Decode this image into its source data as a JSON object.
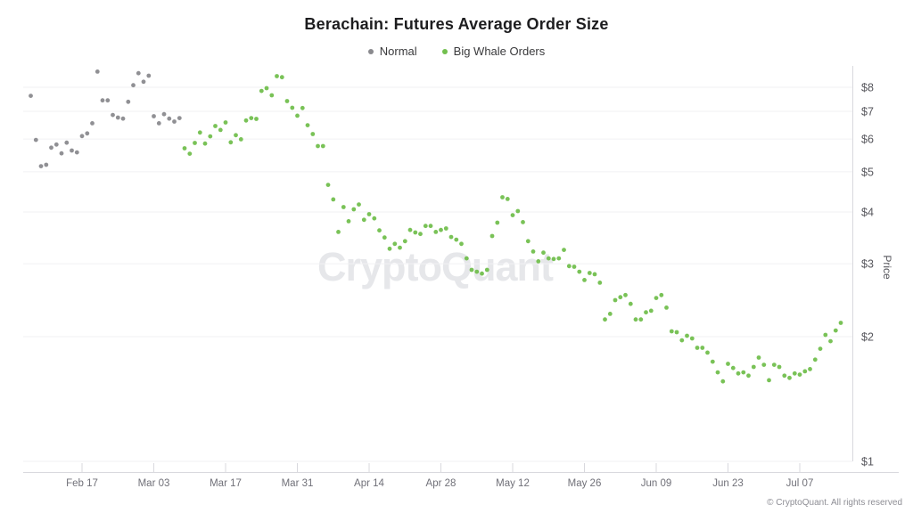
{
  "title": "Berachain: Futures Average Order Size",
  "legend": [
    {
      "label": "Normal",
      "color": "#8a8a8e"
    },
    {
      "label": "Big Whale Orders",
      "color": "#72bf4e"
    }
  ],
  "watermark": "CryptoQuant",
  "attribution": "© CryptoQuant. All rights reserved",
  "colors": {
    "normal_series": "#8a8a8e",
    "whale_series": "#72bf4e",
    "gridline": "#f1f1f3",
    "axis_line": "#d9d9de",
    "tick_label": "#707078",
    "y_label": "#56565c"
  },
  "chart_data": {
    "type": "scatter",
    "title": "Berachain: Futures Average Order Size",
    "xlabel": "",
    "ylabel": "Price",
    "y_scale": "log",
    "ylim": [
      1,
      9
    ],
    "y_ticks": [
      1,
      2,
      3,
      4,
      5,
      6,
      7,
      8
    ],
    "y_tick_prefix": "$",
    "x_ticks": [
      "Feb 17",
      "Mar 03",
      "Mar 17",
      "Mar 31",
      "Apr 14",
      "Apr 28",
      "May 12",
      "May 26",
      "Jun 09",
      "Jun 23",
      "Jul 07"
    ],
    "x_range": [
      "Feb 07",
      "Jul 15"
    ],
    "grid": "horizontal",
    "legend_position": "top",
    "series": [
      {
        "name": "Normal",
        "color": "#8a8a8e",
        "points": [
          [
            "Feb 07",
            7.63
          ],
          [
            "Feb 08",
            5.97
          ],
          [
            "Feb 09",
            5.16
          ],
          [
            "Feb 10",
            5.2
          ],
          [
            "Feb 11",
            5.72
          ],
          [
            "Feb 12",
            5.82
          ],
          [
            "Feb 13",
            5.54
          ],
          [
            "Feb 14",
            5.88
          ],
          [
            "Feb 15",
            5.63
          ],
          [
            "Feb 16",
            5.57
          ],
          [
            "Feb 17",
            6.1
          ],
          [
            "Feb 18",
            6.19
          ],
          [
            "Feb 19",
            6.55
          ],
          [
            "Feb 20",
            8.73
          ],
          [
            "Feb 21",
            7.44
          ],
          [
            "Feb 22",
            7.44
          ],
          [
            "Feb 23",
            6.86
          ],
          [
            "Feb 24",
            6.76
          ],
          [
            "Feb 25",
            6.72
          ],
          [
            "Feb 26",
            7.38
          ],
          [
            "Feb 27",
            8.09
          ],
          [
            "Feb 28",
            8.65
          ],
          [
            "Mar 01",
            8.25
          ],
          [
            "Mar 02",
            8.53
          ],
          [
            "Mar 03",
            6.81
          ],
          [
            "Mar 04",
            6.55
          ],
          [
            "Mar 05",
            6.89
          ],
          [
            "Mar 06",
            6.72
          ],
          [
            "Mar 07",
            6.61
          ],
          [
            "Mar 08",
            6.74
          ]
        ]
      },
      {
        "name": "Big Whale Orders",
        "color": "#72bf4e",
        "points": [
          [
            "Mar 09",
            5.7
          ],
          [
            "Mar 10",
            5.53
          ],
          [
            "Mar 11",
            5.87
          ],
          [
            "Mar 12",
            6.22
          ],
          [
            "Mar 13",
            5.85
          ],
          [
            "Mar 14",
            6.09
          ],
          [
            "Mar 15",
            6.45
          ],
          [
            "Mar 16",
            6.31
          ],
          [
            "Mar 17",
            6.58
          ],
          [
            "Mar 18",
            5.89
          ],
          [
            "Mar 19",
            6.13
          ],
          [
            "Mar 20",
            5.99
          ],
          [
            "Mar 21",
            6.65
          ],
          [
            "Mar 22",
            6.74
          ],
          [
            "Mar 23",
            6.71
          ],
          [
            "Mar 24",
            7.84
          ],
          [
            "Mar 25",
            7.96
          ],
          [
            "Mar 26",
            7.65
          ],
          [
            "Mar 27",
            8.51
          ],
          [
            "Mar 28",
            8.46
          ],
          [
            "Mar 29",
            7.41
          ],
          [
            "Mar 30",
            7.14
          ],
          [
            "Mar 31",
            6.83
          ],
          [
            "Apr 01",
            7.13
          ],
          [
            "Apr 02",
            6.48
          ],
          [
            "Apr 03",
            6.17
          ],
          [
            "Apr 04",
            5.77
          ],
          [
            "Apr 05",
            5.77
          ],
          [
            "Apr 06",
            4.65
          ],
          [
            "Apr 07",
            4.29
          ],
          [
            "Apr 08",
            3.58
          ],
          [
            "Apr 09",
            4.11
          ],
          [
            "Apr 10",
            3.8
          ],
          [
            "Apr 11",
            4.06
          ],
          [
            "Apr 12",
            4.17
          ],
          [
            "Apr 13",
            3.83
          ],
          [
            "Apr 14",
            3.95
          ],
          [
            "Apr 15",
            3.86
          ],
          [
            "Apr 16",
            3.61
          ],
          [
            "Apr 17",
            3.47
          ],
          [
            "Apr 18",
            3.26
          ],
          [
            "Apr 19",
            3.35
          ],
          [
            "Apr 20",
            3.28
          ],
          [
            "Apr 21",
            3.4
          ],
          [
            "Apr 22",
            3.62
          ],
          [
            "Apr 23",
            3.57
          ],
          [
            "Apr 24",
            3.54
          ],
          [
            "Apr 25",
            3.7
          ],
          [
            "Apr 26",
            3.7
          ],
          [
            "Apr 27",
            3.58
          ],
          [
            "Apr 28",
            3.62
          ],
          [
            "Apr 29",
            3.65
          ],
          [
            "Apr 30",
            3.48
          ],
          [
            "May 01",
            3.43
          ],
          [
            "May 02",
            3.35
          ],
          [
            "May 03",
            3.09
          ],
          [
            "May 04",
            2.9
          ],
          [
            "May 05",
            2.87
          ],
          [
            "May 06",
            2.84
          ],
          [
            "May 07",
            2.9
          ],
          [
            "May 08",
            3.5
          ],
          [
            "May 09",
            3.77
          ],
          [
            "May 10",
            4.34
          ],
          [
            "May 11",
            4.3
          ],
          [
            "May 12",
            3.93
          ],
          [
            "May 13",
            4.02
          ],
          [
            "May 14",
            3.78
          ],
          [
            "May 15",
            3.4
          ],
          [
            "May 16",
            3.21
          ],
          [
            "May 17",
            3.04
          ],
          [
            "May 18",
            3.19
          ],
          [
            "May 19",
            3.09
          ],
          [
            "May 20",
            3.08
          ],
          [
            "May 21",
            3.09
          ],
          [
            "May 22",
            3.24
          ],
          [
            "May 23",
            2.96
          ],
          [
            "May 24",
            2.95
          ],
          [
            "May 25",
            2.87
          ],
          [
            "May 26",
            2.74
          ],
          [
            "May 27",
            2.85
          ],
          [
            "May 28",
            2.83
          ],
          [
            "May 29",
            2.7
          ],
          [
            "May 30",
            2.2
          ],
          [
            "May 31",
            2.27
          ],
          [
            "Jun 01",
            2.45
          ],
          [
            "Jun 02",
            2.49
          ],
          [
            "Jun 03",
            2.52
          ],
          [
            "Jun 04",
            2.4
          ],
          [
            "Jun 05",
            2.2
          ],
          [
            "Jun 06",
            2.2
          ],
          [
            "Jun 07",
            2.29
          ],
          [
            "Jun 08",
            2.31
          ],
          [
            "Jun 09",
            2.48
          ],
          [
            "Jun 10",
            2.52
          ],
          [
            "Jun 11",
            2.35
          ],
          [
            "Jun 12",
            2.06
          ],
          [
            "Jun 13",
            2.05
          ],
          [
            "Jun 14",
            1.96
          ],
          [
            "Jun 15",
            2.01
          ],
          [
            "Jun 16",
            1.98
          ],
          [
            "Jun 17",
            1.88
          ],
          [
            "Jun 18",
            1.88
          ],
          [
            "Jun 19",
            1.83
          ],
          [
            "Jun 20",
            1.74
          ],
          [
            "Jun 21",
            1.64
          ],
          [
            "Jun 22",
            1.56
          ],
          [
            "Jun 23",
            1.72
          ],
          [
            "Jun 24",
            1.68
          ],
          [
            "Jun 25",
            1.63
          ],
          [
            "Jun 26",
            1.64
          ],
          [
            "Jun 27",
            1.61
          ],
          [
            "Jun 28",
            1.69
          ],
          [
            "Jun 29",
            1.78
          ],
          [
            "Jun 30",
            1.71
          ],
          [
            "Jul 01",
            1.57
          ],
          [
            "Jul 02",
            1.71
          ],
          [
            "Jul 03",
            1.69
          ],
          [
            "Jul 04",
            1.61
          ],
          [
            "Jul 05",
            1.59
          ],
          [
            "Jul 06",
            1.63
          ],
          [
            "Jul 07",
            1.62
          ],
          [
            "Jul 08",
            1.65
          ],
          [
            "Jul 09",
            1.67
          ],
          [
            "Jul 10",
            1.76
          ],
          [
            "Jul 11",
            1.87
          ],
          [
            "Jul 12",
            2.02
          ],
          [
            "Jul 13",
            1.95
          ],
          [
            "Jul 14",
            2.07
          ],
          [
            "Jul 15",
            2.16
          ]
        ]
      }
    ]
  }
}
